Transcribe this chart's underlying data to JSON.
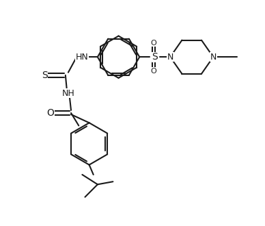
{
  "bg_color": "#ffffff",
  "line_color": "#1a1a1a",
  "bond_width": 1.5,
  "font_size": 9,
  "fig_width": 3.88,
  "fig_height": 3.3,
  "dpi": 100,
  "xlim": [
    0,
    9
  ],
  "ylim": [
    0,
    8
  ]
}
